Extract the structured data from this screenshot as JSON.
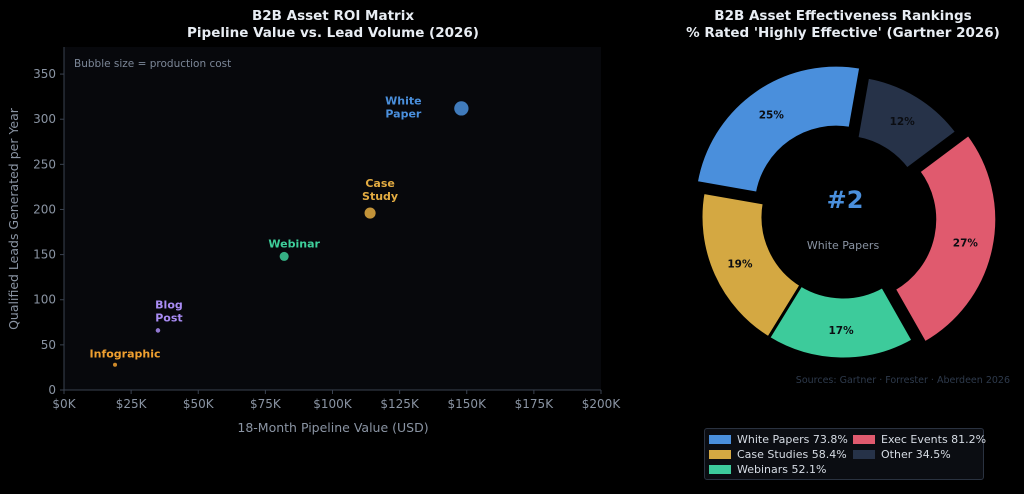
{
  "chart_data": [
    {
      "type": "scatter",
      "title": "B2B Asset ROI Matrix",
      "subtitle": "Pipeline Value vs. Lead Volume (2026)",
      "xlabel": "18-Month Pipeline Value (USD)",
      "ylabel": "Qualified Leads Generated per Year",
      "annotation": "Bubble size = production cost",
      "xlim": [
        0,
        200000
      ],
      "ylim": [
        0,
        380
      ],
      "x_ticks": [
        0,
        25000,
        50000,
        75000,
        100000,
        125000,
        150000,
        175000,
        200000
      ],
      "x_tick_labels": [
        "$0K",
        "$25K",
        "$50K",
        "$75K",
        "$100K",
        "$125K",
        "$150K",
        "$175K",
        "$200K"
      ],
      "y_ticks": [
        0,
        50,
        100,
        150,
        200,
        250,
        300,
        350
      ],
      "y_tick_labels": [
        "0",
        "50",
        "100",
        "150",
        "200",
        "250",
        "300",
        "350"
      ],
      "grid": false,
      "points": [
        {
          "label": "White Paper",
          "label_lines": [
            "White",
            "Paper"
          ],
          "x": 148000,
          "y": 312,
          "cost": 5,
          "color": "#4a8fdc"
        },
        {
          "label": "Case Study",
          "label_lines": [
            "Case",
            "Study"
          ],
          "x": 114000,
          "y": 196,
          "cost": 3,
          "color": "#e3ac42"
        },
        {
          "label": "Webinar",
          "label_lines": [
            "Webinar"
          ],
          "x": 82000,
          "y": 148,
          "cost": 2,
          "color": "#3ecf9b"
        },
        {
          "label": "Blog Post",
          "label_lines": [
            "Blog",
            "Post"
          ],
          "x": 35000,
          "y": 66,
          "cost": 0.5,
          "color": "#a98cf4"
        },
        {
          "label": "Infographic",
          "label_lines": [
            "Infographic"
          ],
          "x": 19000,
          "y": 28,
          "cost": 0.4,
          "color": "#f0a030"
        }
      ]
    },
    {
      "type": "pie",
      "title": "B2B Asset Effectiveness Rankings",
      "subtitle": "% Rated 'Highly Effective' (Gartner 2026)",
      "center_value": "#2",
      "center_label": "White Papers",
      "source": "Sources: Gartner · Forrester · Aberdeen 2026",
      "legend_position": "bottom-right",
      "slices": [
        {
          "name": "White Papers",
          "pct_label": "25%",
          "share": 25,
          "rated": 73.8,
          "legend": "White Papers 73.8%",
          "color": "#4a8fdc",
          "explode": true
        },
        {
          "name": "Case Studies",
          "pct_label": "19%",
          "share": 19,
          "rated": 58.4,
          "legend": "Case Studies 58.4%",
          "color": "#d4a842",
          "explode": false
        },
        {
          "name": "Webinars",
          "pct_label": "17%",
          "share": 17,
          "rated": 52.1,
          "legend": "Webinars 52.1%",
          "color": "#3dcb9b",
          "explode": false
        },
        {
          "name": "Exec Events",
          "pct_label": "27%",
          "share": 27,
          "rated": 81.2,
          "legend": "Exec Events 81.2%",
          "color": "#e05a6e",
          "explode": true
        },
        {
          "name": "Other",
          "pct_label": "12%",
          "share": 12,
          "rated": 34.5,
          "legend": "Other 34.5%",
          "color": "#263248",
          "explode": false
        }
      ]
    }
  ]
}
